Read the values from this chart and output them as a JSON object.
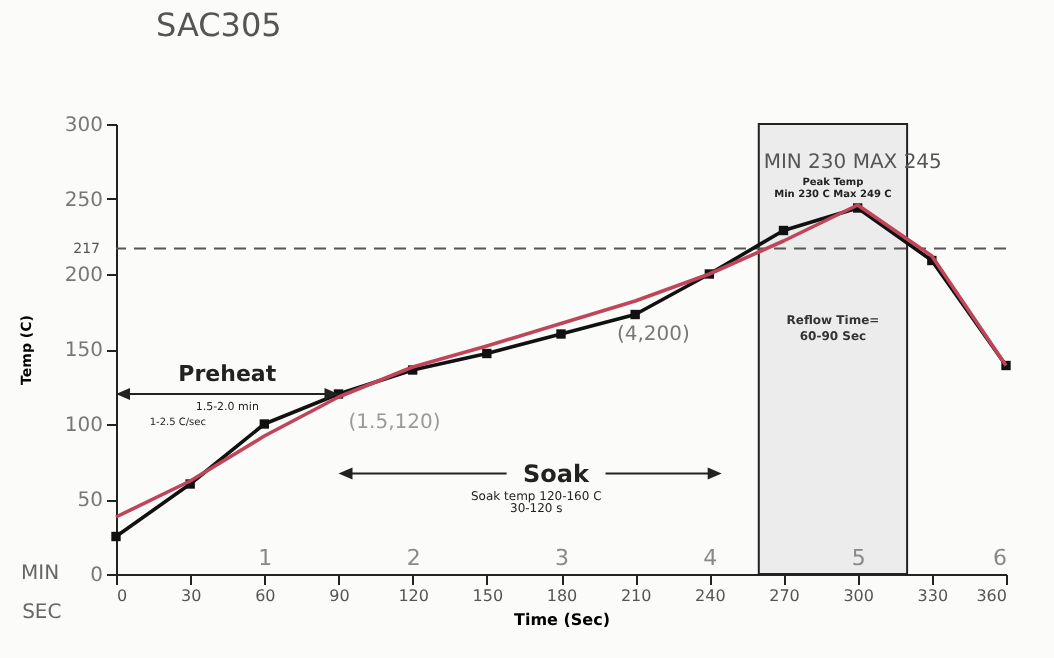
{
  "chart_data": {
    "type": "line",
    "title": "SAC305",
    "xlabel": "Time (Sec)",
    "ylabel": "Temp (C)",
    "x2label": "MIN",
    "x": [
      0,
      30,
      60,
      90,
      120,
      150,
      180,
      210,
      240,
      270,
      300,
      330,
      360
    ],
    "series": [
      {
        "color": "#111111",
        "marker": "square",
        "values": [
          25,
          60,
          100,
          120,
          136,
          147,
          160,
          173,
          200,
          229,
          244,
          209,
          139
        ]
      },
      {
        "color": "#c0445a",
        "marker": "none",
        "values": [
          38,
          62,
          92,
          118,
          138,
          152,
          167,
          182,
          200,
          222,
          246,
          212,
          139
        ]
      }
    ],
    "xlim": [
      0,
      360
    ],
    "xticks": [
      0,
      30,
      60,
      90,
      120,
      150,
      180,
      210,
      240,
      270,
      300,
      330,
      360
    ],
    "ylim": [
      0,
      300
    ],
    "yticks": [
      0,
      50,
      100,
      150,
      200,
      250,
      300
    ],
    "x2lim": [
      0,
      6
    ],
    "x2ticks": [
      1,
      2,
      3,
      4,
      5,
      6
    ],
    "ref_lines": [
      {
        "axis": "y",
        "value": 217,
        "label": "217",
        "line_style": "dashed",
        "color": "#555555"
      }
    ],
    "bands": [
      {
        "axis": "x",
        "from": 260,
        "to": 320,
        "label": "Reflow Time=\n60-90 Sec",
        "color": "#ececec"
      }
    ],
    "annotations": [
      "Preheat",
      "1.5-2.0 min",
      "1-2.5 C/sec",
      "Soak",
      "Soak temp 120-160 C",
      "30-120 s",
      {
        "text": "(1.5,120)",
        "x": 90,
        "y": 120
      },
      {
        "text": "(4,200)",
        "x": 240,
        "y": 200
      },
      "Peak Temp",
      "Min 230 C Max 249 C",
      "MIN 230  MAX 245",
      "SEC"
    ],
    "grid": false
  }
}
